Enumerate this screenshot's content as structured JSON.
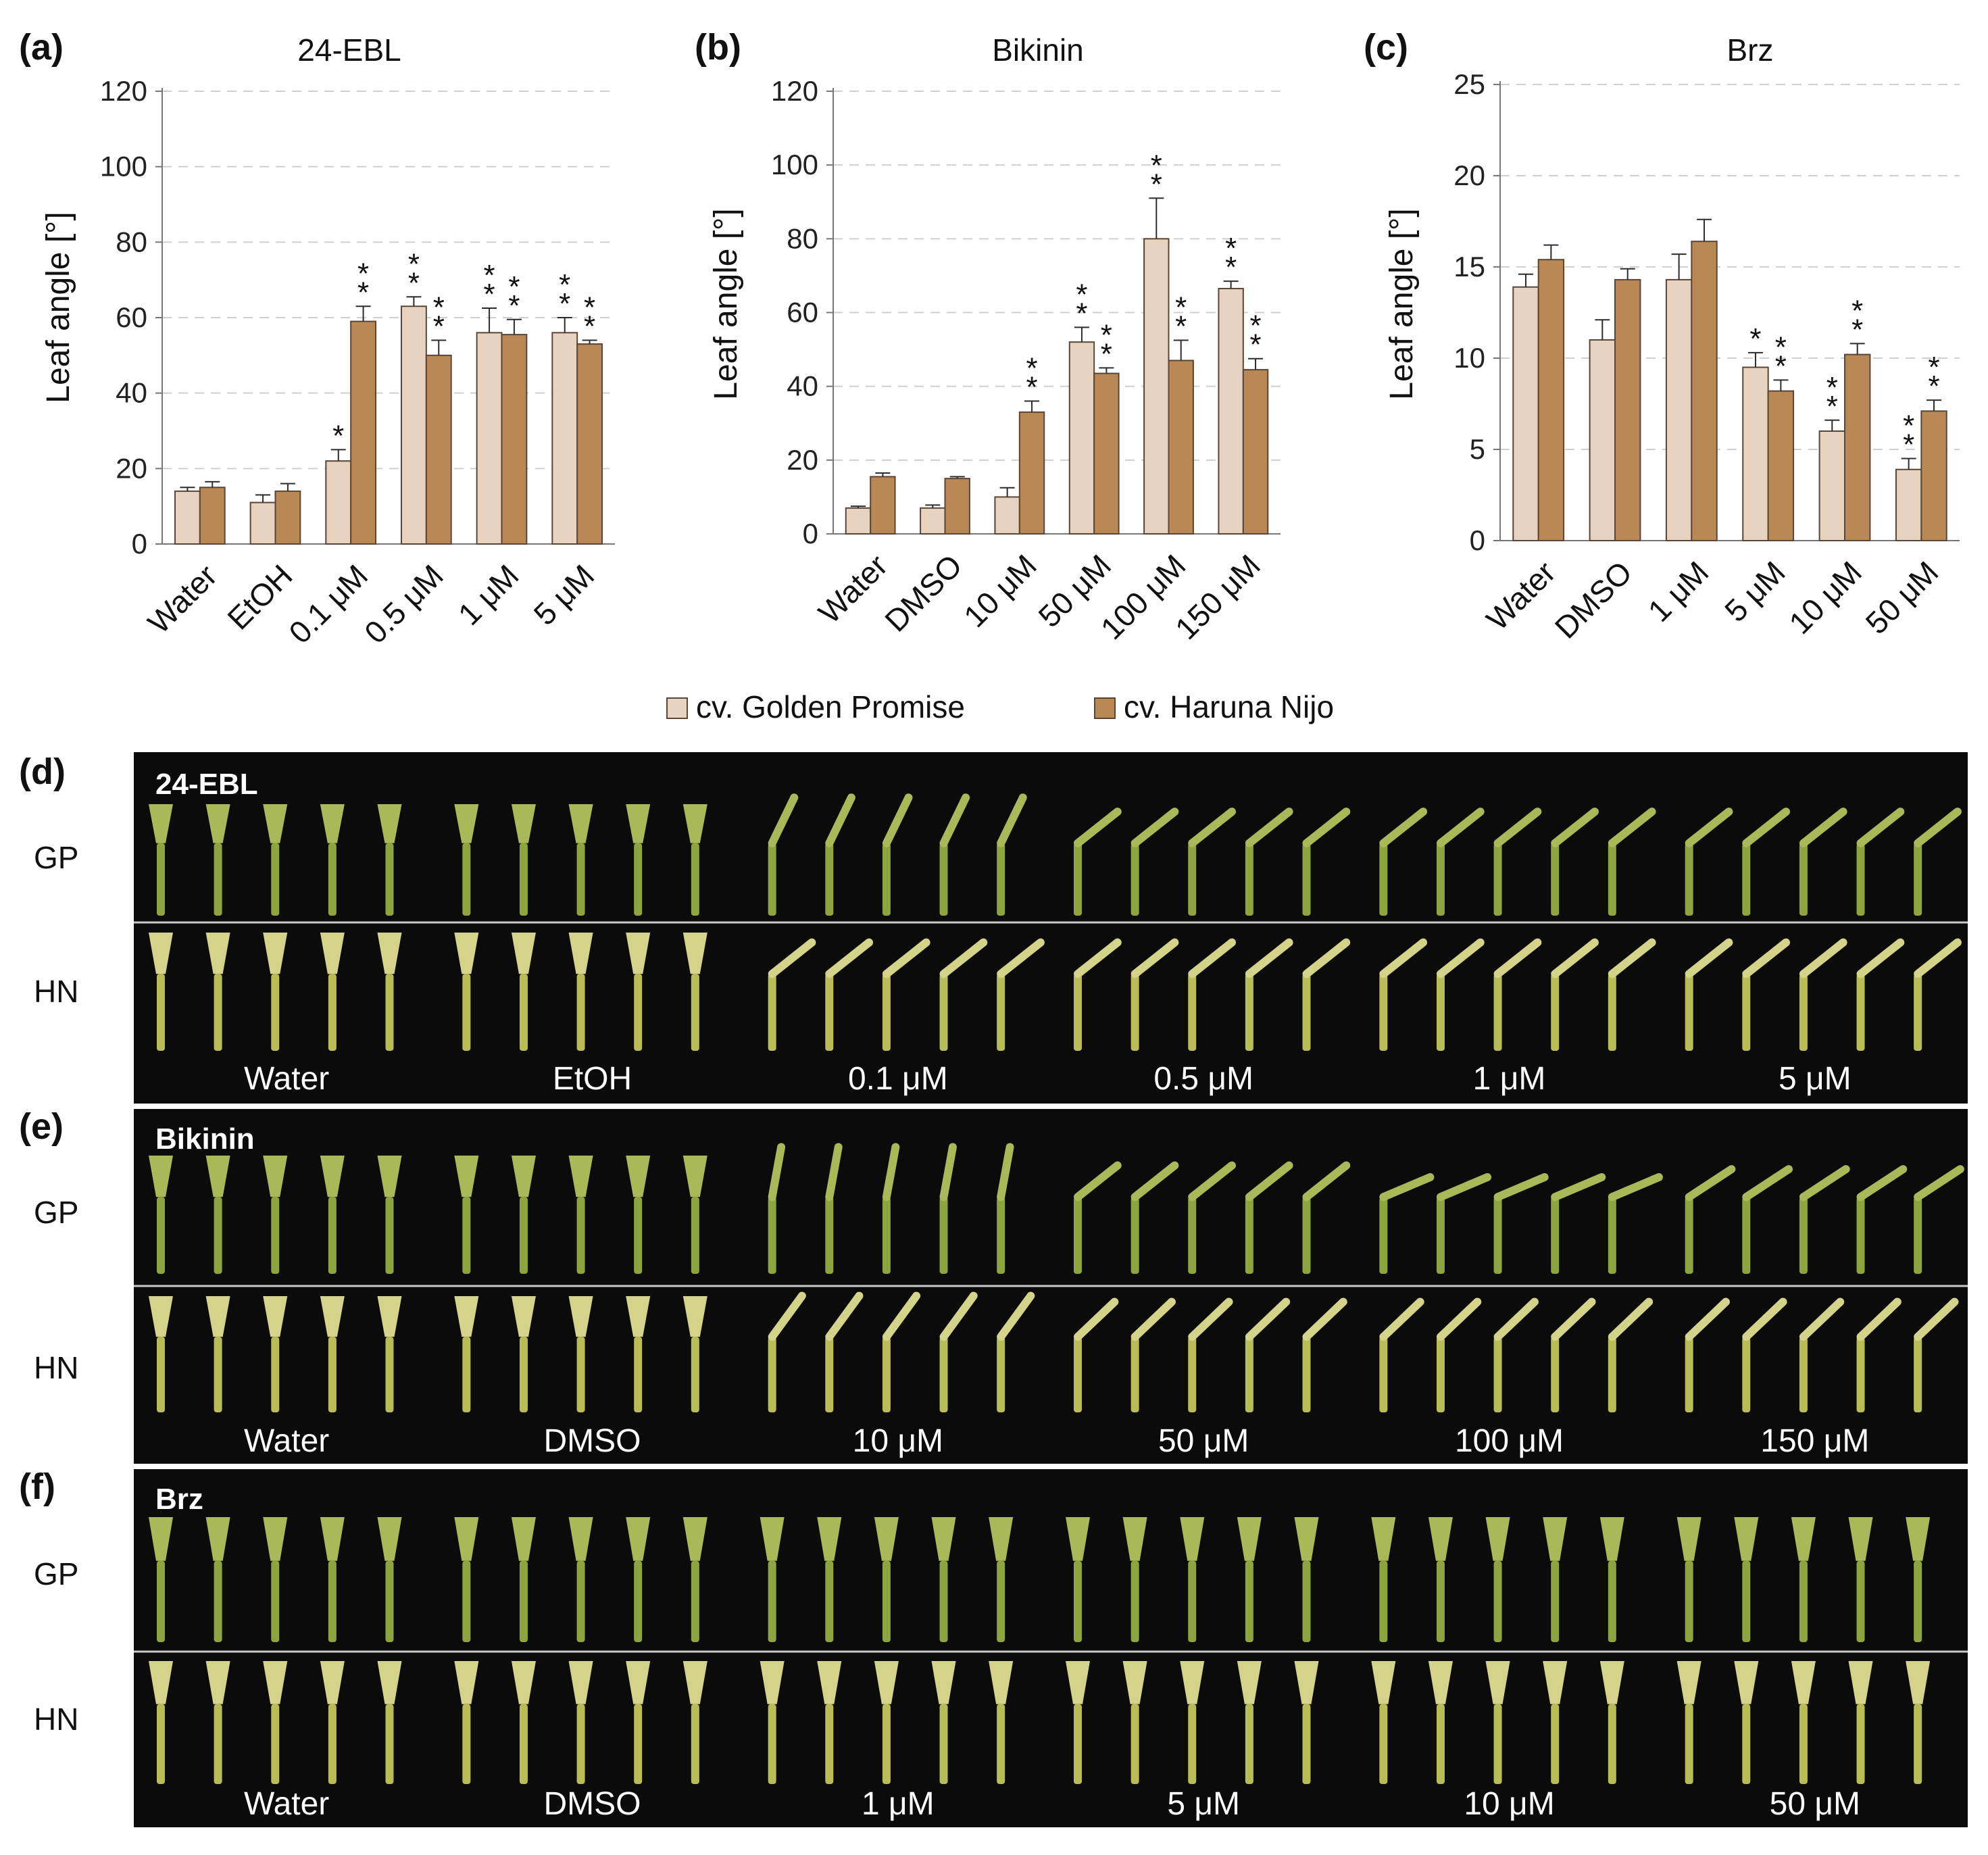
{
  "chart_data": [
    {
      "panel": "(a)",
      "type": "bar",
      "title": "24-EBL",
      "ylabel": "Leaf angle [°]",
      "ylim": [
        0,
        120
      ],
      "yticks": [
        0,
        20,
        40,
        60,
        80,
        100,
        120
      ],
      "categories": [
        "Water",
        "EtOH",
        "0.1 μM",
        "0.5 μM",
        "1 μM",
        "5 μM"
      ],
      "series": [
        {
          "name": "cv. Golden Promise",
          "values": [
            14,
            11,
            22,
            63,
            56,
            56
          ],
          "errors": [
            1,
            2,
            3,
            2.5,
            6.5,
            4
          ],
          "sig": [
            "",
            "",
            "*",
            "**",
            "**",
            "**"
          ]
        },
        {
          "name": "cv. Haruna Nijo",
          "values": [
            15,
            14,
            59,
            50,
            55.5,
            53
          ],
          "errors": [
            1.5,
            2,
            4,
            4,
            4,
            1
          ],
          "sig": [
            "",
            "",
            "**",
            "**",
            "**",
            "**"
          ]
        }
      ]
    },
    {
      "panel": "(b)",
      "type": "bar",
      "title": "Bikinin",
      "ylabel": "Leaf angle [°]",
      "ylim": [
        0,
        120
      ],
      "yticks": [
        0,
        20,
        40,
        60,
        80,
        100,
        120
      ],
      "categories": [
        "Water",
        "DMSO",
        "10 μM",
        "50 μM",
        "100 μM",
        "150 μM"
      ],
      "series": [
        {
          "name": "cv. Golden Promise",
          "values": [
            7,
            7,
            10,
            52,
            80,
            66.5
          ],
          "errors": [
            0.5,
            0.8,
            2.5,
            4,
            11,
            2
          ],
          "sig": [
            "",
            "",
            "",
            "**",
            "**",
            "**"
          ]
        },
        {
          "name": "cv. Haruna Nijo",
          "values": [
            15.5,
            15,
            33,
            43.5,
            47,
            44.5
          ],
          "errors": [
            1,
            0.5,
            3,
            1.5,
            5.5,
            3
          ],
          "sig": [
            "",
            "",
            "**",
            "**",
            "**",
            "**"
          ]
        }
      ]
    },
    {
      "panel": "(c)",
      "type": "bar",
      "title": "Brz",
      "ylabel": "Leaf angle [°]",
      "ylim": [
        0,
        25
      ],
      "yticks": [
        0,
        5,
        10,
        15,
        20,
        25
      ],
      "categories": [
        "Water",
        "DMSO",
        "1 μM",
        "5 μM",
        "10 μM",
        "50 μM"
      ],
      "series": [
        {
          "name": "cv. Golden Promise",
          "values": [
            13.9,
            11,
            14.3,
            9.5,
            6,
            3.9
          ],
          "errors": [
            0.7,
            1.1,
            1.4,
            0.8,
            0.6,
            0.6
          ],
          "sig": [
            "",
            "",
            "",
            "*",
            "**",
            "**"
          ]
        },
        {
          "name": "cv. Haruna Nijo",
          "values": [
            15.4,
            14.3,
            16.4,
            8.2,
            10.2,
            7.1
          ],
          "errors": [
            0.8,
            0.6,
            1.2,
            0.6,
            0.6,
            0.6
          ],
          "sig": [
            "",
            "",
            "",
            "**",
            "**",
            "**"
          ]
        }
      ]
    }
  ],
  "legend": {
    "items": [
      {
        "label": "cv. Golden Promise",
        "color": "#e8d3c0"
      },
      {
        "label": "cv. Haruna Nijo",
        "color": "#b98855"
      }
    ]
  },
  "colors": {
    "golden_promise": "#e8d3c0",
    "haruna_nijo": "#b98855",
    "bar_edge": "#5a4636",
    "photo_bg": "#0b0b0b",
    "gridline": "#cfcfcf"
  },
  "photo_panels": [
    {
      "letter": "(d)",
      "title": "24-EBL",
      "rows": [
        "GP",
        "HN"
      ],
      "categories": [
        "Water",
        "EtOH",
        "0.1 μM",
        "0.5 μM",
        "1 μM",
        "5 μM"
      ]
    },
    {
      "letter": "(e)",
      "title": "Bikinin",
      "rows": [
        "GP",
        "HN"
      ],
      "categories": [
        "Water",
        "DMSO",
        "10 μM",
        "50 μM",
        "100 μM",
        "150 μM"
      ]
    },
    {
      "letter": "(f)",
      "title": "Brz",
      "rows": [
        "GP",
        "HN"
      ],
      "categories": [
        "Water",
        "DMSO",
        "1 μM",
        "5 μM",
        "10 μM",
        "50 μM"
      ]
    }
  ]
}
